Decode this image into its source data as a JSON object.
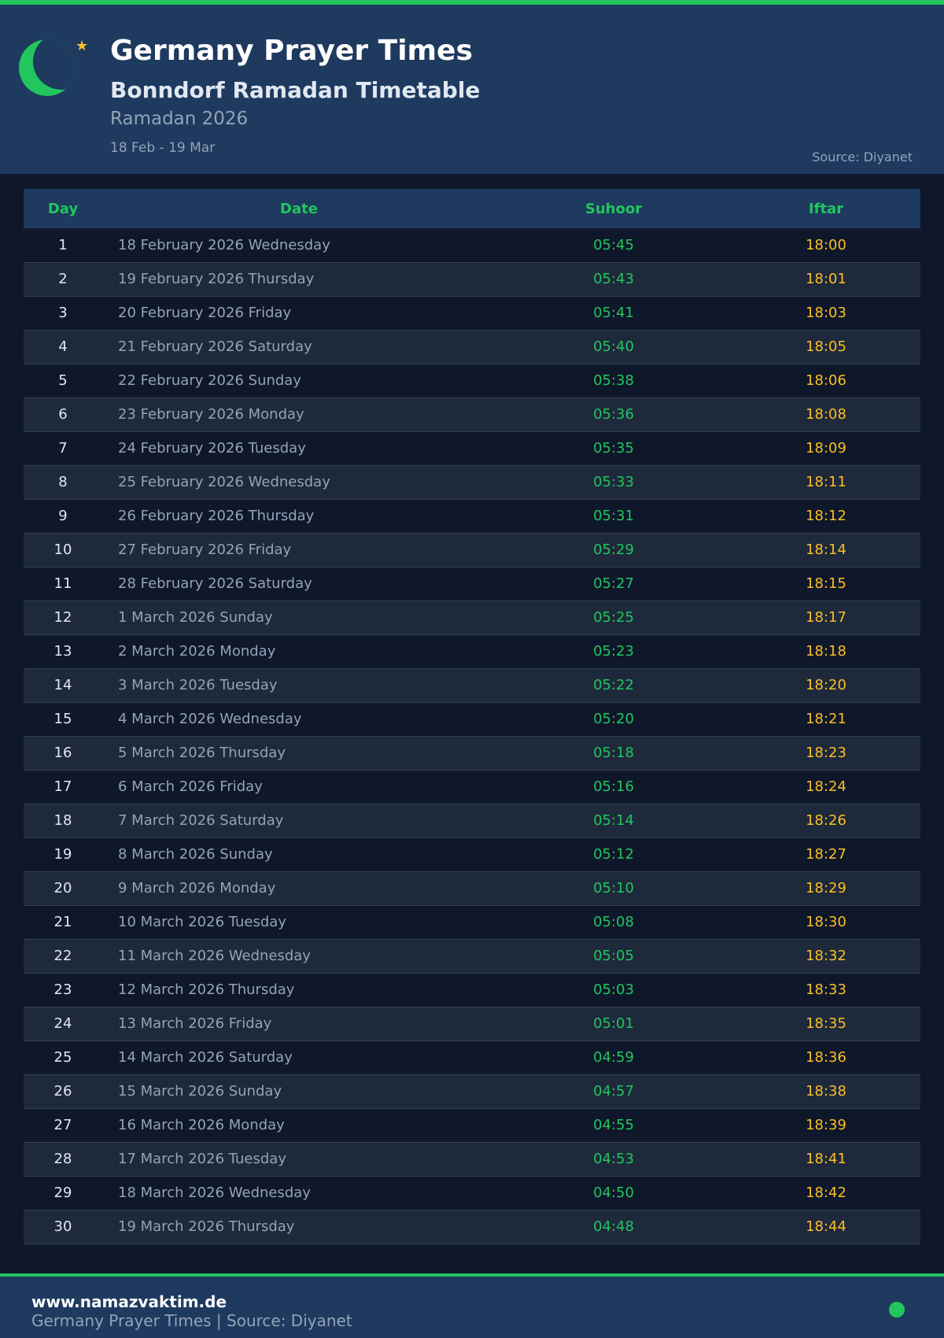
{
  "header": {
    "title": "Germany Prayer Times",
    "subtitle": "Bonndorf Ramadan Timetable",
    "year": "Ramadan 2026",
    "range": "18 Feb - 19 Mar",
    "source": "Source: Diyanet"
  },
  "colors": {
    "accent": "#22c55e",
    "iftar": "#fbbf24",
    "header_bg": "#1e3a5f",
    "bg": "#0f172a"
  },
  "table": {
    "columns": [
      "Day",
      "Date",
      "Suhoor",
      "Iftar"
    ],
    "rows": [
      [
        "1",
        "18 February 2026 Wednesday",
        "05:45",
        "18:00"
      ],
      [
        "2",
        "19 February 2026 Thursday",
        "05:43",
        "18:01"
      ],
      [
        "3",
        "20 February 2026 Friday",
        "05:41",
        "18:03"
      ],
      [
        "4",
        "21 February 2026 Saturday",
        "05:40",
        "18:05"
      ],
      [
        "5",
        "22 February 2026 Sunday",
        "05:38",
        "18:06"
      ],
      [
        "6",
        "23 February 2026 Monday",
        "05:36",
        "18:08"
      ],
      [
        "7",
        "24 February 2026 Tuesday",
        "05:35",
        "18:09"
      ],
      [
        "8",
        "25 February 2026 Wednesday",
        "05:33",
        "18:11"
      ],
      [
        "9",
        "26 February 2026 Thursday",
        "05:31",
        "18:12"
      ],
      [
        "10",
        "27 February 2026 Friday",
        "05:29",
        "18:14"
      ],
      [
        "11",
        "28 February 2026 Saturday",
        "05:27",
        "18:15"
      ],
      [
        "12",
        "1 March 2026 Sunday",
        "05:25",
        "18:17"
      ],
      [
        "13",
        "2 March 2026 Monday",
        "05:23",
        "18:18"
      ],
      [
        "14",
        "3 March 2026 Tuesday",
        "05:22",
        "18:20"
      ],
      [
        "15",
        "4 March 2026 Wednesday",
        "05:20",
        "18:21"
      ],
      [
        "16",
        "5 March 2026 Thursday",
        "05:18",
        "18:23"
      ],
      [
        "17",
        "6 March 2026 Friday",
        "05:16",
        "18:24"
      ],
      [
        "18",
        "7 March 2026 Saturday",
        "05:14",
        "18:26"
      ],
      [
        "19",
        "8 March 2026 Sunday",
        "05:12",
        "18:27"
      ],
      [
        "20",
        "9 March 2026 Monday",
        "05:10",
        "18:29"
      ],
      [
        "21",
        "10 March 2026 Tuesday",
        "05:08",
        "18:30"
      ],
      [
        "22",
        "11 March 2026 Wednesday",
        "05:05",
        "18:32"
      ],
      [
        "23",
        "12 March 2026 Thursday",
        "05:03",
        "18:33"
      ],
      [
        "24",
        "13 March 2026 Friday",
        "05:01",
        "18:35"
      ],
      [
        "25",
        "14 March 2026 Saturday",
        "04:59",
        "18:36"
      ],
      [
        "26",
        "15 March 2026 Sunday",
        "04:57",
        "18:38"
      ],
      [
        "27",
        "16 March 2026 Monday",
        "04:55",
        "18:39"
      ],
      [
        "28",
        "17 March 2026 Tuesday",
        "04:53",
        "18:41"
      ],
      [
        "29",
        "18 March 2026 Wednesday",
        "04:50",
        "18:42"
      ],
      [
        "30",
        "19 March 2026 Thursday",
        "04:48",
        "18:44"
      ]
    ]
  },
  "footer": {
    "site": "www.namazvaktim.de",
    "text": "Germany Prayer Times | Source: Diyanet"
  }
}
